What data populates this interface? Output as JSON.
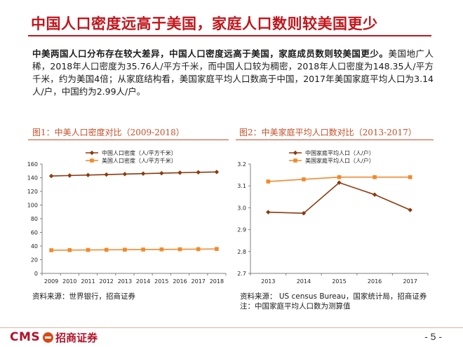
{
  "header": {
    "title": "中国人口密度远高于美国，家庭人口数则较美国更少"
  },
  "summary": {
    "lead": "中美两国人口分布存在较大差异，中国人口密度远高于美国，家庭成员数则较美国更少。",
    "body": "美国地广人稀，2018年人口密度为35.76人/平方千米，而中国人口较为稠密，2018年人口密度为148.35人/平方千米，约为美国4倍；从家庭结构看，美国家庭平均人口数高于中国，2017年美国家庭平均人口为3.14人/户，中国约为2.99人/户。"
  },
  "figure1": {
    "caption": "图1：中美人口密度对比（2009-2018）",
    "source": "资料来源：世界银行，招商证券"
  },
  "figure2": {
    "caption": "图2：中美家庭平均人口数对比（2013-2017）",
    "source_line1": "资料来源： US census Bureau，国家统计局，招商证券",
    "source_line2": "注：中国家庭平均人口数为测算值"
  },
  "footer": {
    "logo_text": "CMS",
    "logo_cn": "招商证券",
    "page_number": "- 5 -"
  },
  "colors": {
    "title_red": "#c0161c",
    "china_series": "#8b3a0f",
    "us_series": "#f08a2c",
    "caption_orange": "#c4502a"
  },
  "chart_data": [
    {
      "type": "line",
      "x": [
        "2009",
        "2010",
        "2011",
        "2012",
        "2013",
        "2014",
        "2015",
        "2016",
        "2017",
        "2018"
      ],
      "ylim": [
        0,
        160
      ],
      "yticks": [
        "0",
        "20",
        "40",
        "60",
        "80",
        "100",
        "120",
        "140",
        "160"
      ],
      "legend_placement": "top-left",
      "grid": false,
      "series": [
        {
          "name": "中国人口密度（人/平方千米）",
          "marker": "diamond",
          "values": [
            142.5,
            143.2,
            143.9,
            144.6,
            145.3,
            146.0,
            146.6,
            147.3,
            147.9,
            148.35
          ]
        },
        {
          "name": "美国人口密度（人/平方千米）",
          "marker": "square",
          "values": [
            33.9,
            34.1,
            34.3,
            34.5,
            34.7,
            34.9,
            35.1,
            35.3,
            35.5,
            35.76
          ]
        }
      ]
    },
    {
      "type": "line",
      "x": [
        "2013",
        "2014",
        "2015",
        "2016",
        "2017"
      ],
      "ylim": [
        2.7,
        3.2
      ],
      "yticks": [
        "2.7",
        "2.8",
        "2.9",
        "3.0",
        "3.1",
        "3.2"
      ],
      "legend_placement": "top-left",
      "grid": false,
      "series": [
        {
          "name": "中国家庭平均人口（人/户）",
          "marker": "diamond",
          "values": [
            2.98,
            2.975,
            3.115,
            3.06,
            2.99
          ]
        },
        {
          "name": "美国家庭平均人口（人/户）",
          "marker": "square",
          "values": [
            3.12,
            3.13,
            3.14,
            3.14,
            3.14
          ]
        }
      ]
    }
  ]
}
